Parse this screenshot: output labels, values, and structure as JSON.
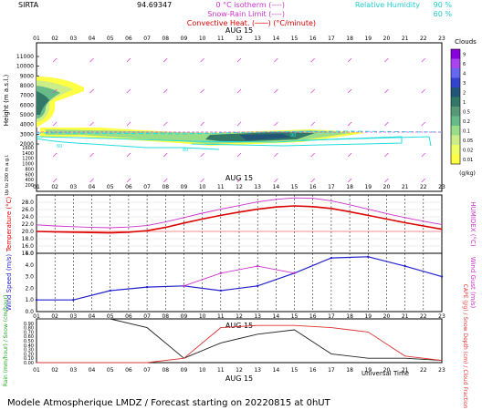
{
  "header": {
    "station": "SIRTA",
    "station_code": "94.69347",
    "legend_isotherm": "0 °C isotherm (----)",
    "legend_snowrain": "Snow-Rain Limit (----)",
    "legend_convective": "Convective Heat. (───) (°C/minute)",
    "legend_rh_label": "Relative Humidity",
    "legend_rh_90": "90 %",
    "legend_rh_60": "60 %"
  },
  "hours": [
    "01",
    "02",
    "03",
    "04",
    "05",
    "06",
    "07",
    "08",
    "09",
    "10",
    "11",
    "12",
    "13",
    "14",
    "15",
    "16",
    "17",
    "18",
    "19",
    "20",
    "21",
    "22",
    "23"
  ],
  "date_label": "AUG 15",
  "footer": {
    "universal_time": "Universal Time",
    "caption": "Modele Atmospherique LMDZ / Forecast starting on 20220815 at 0hUT"
  },
  "colors": {
    "temperature": "#dd0000",
    "humidex": "#cc33cc",
    "wind_speed": "#2222cc",
    "wind_gust": "#cc33cc",
    "rain": "#dd3333",
    "cloud_fraction": "#222222",
    "rh_contour": "#22dddd"
  },
  "chart_data": [
    {
      "type": "heatmap",
      "name": "clouds",
      "ylabel": "Height (m a.s.l.)",
      "ylabel_low": "Up to 200 m a.g.l.",
      "y_ticks_upper": [
        "11000",
        "10000",
        "9000",
        "8000",
        "7000",
        "6000",
        "5000",
        "4000",
        "3000",
        "2000"
      ],
      "y_ticks_lower": [
        "1600",
        "1400",
        "1200",
        "1000",
        "800",
        "600",
        "400",
        "200"
      ],
      "colorbar_title": "Clouds",
      "colorbar_ticks": [
        "9",
        "6",
        "4",
        "3",
        "2",
        "1",
        "0.5",
        "0.2",
        "0.1",
        "0.05",
        "0.02",
        "0.01"
      ],
      "colorbar_unit": "(g/kg)",
      "colorbar_colors": [
        "#8800dd",
        "#aa44ee",
        "#6666ee",
        "#3344cc",
        "#225577",
        "#337766",
        "#559977",
        "#66bb88",
        "#99dd88",
        "#ccee88",
        "#eeff66",
        "#ffff44"
      ],
      "contour_labels": [
        "60",
        "80",
        "90"
      ]
    },
    {
      "type": "line",
      "name": "temperature",
      "ylabel": "Temperature (°C)",
      "ylabel_right": "HUMIDEX (°C)",
      "y_ticks": [
        "28.0",
        "26.0",
        "24.0",
        "22.0",
        "20.0",
        "18.0",
        "16.0",
        "14.0"
      ],
      "ylim": [
        14,
        30
      ],
      "series": [
        {
          "name": "Temperature",
          "values": [
            20.0,
            19.9,
            19.8,
            19.7,
            19.6,
            19.8,
            20.2,
            21.1,
            22.3,
            23.4,
            24.4,
            25.3,
            26.1,
            26.7,
            27.0,
            26.8,
            26.3,
            25.4,
            24.4,
            23.4,
            22.4,
            21.5,
            20.6
          ]
        },
        {
          "name": "HUMIDEX",
          "values": [
            21.8,
            21.5,
            21.3,
            21.1,
            21.0,
            21.2,
            21.6,
            22.6,
            23.8,
            25.0,
            26.1,
            27.1,
            28.1,
            28.8,
            29.2,
            29.1,
            28.4,
            27.3,
            26.1,
            24.9,
            23.8,
            22.8,
            21.9
          ]
        }
      ]
    },
    {
      "type": "line",
      "name": "wind",
      "ylabel": "Wind Speed (m/s)",
      "ylabel_right": "Wind Gust (m/s)",
      "y_ticks": [
        "5.0",
        "4.0",
        "3.0",
        "2.0",
        "1.0",
        "0.0"
      ],
      "ylim": [
        0,
        5
      ],
      "series": [
        {
          "name": "Wind Speed",
          "x": [
            1,
            3,
            5,
            7,
            9,
            11,
            13,
            15,
            17,
            19,
            21,
            23
          ],
          "values": [
            1.0,
            1.0,
            1.8,
            2.1,
            2.2,
            1.8,
            2.2,
            3.3,
            4.6,
            4.7,
            3.9,
            3.0
          ]
        },
        {
          "name": "Wind Gust",
          "x": [
            9,
            11,
            13,
            15
          ],
          "values": [
            2.2,
            3.3,
            3.9,
            3.3
          ]
        }
      ]
    },
    {
      "type": "line",
      "name": "precip",
      "ylabel": "Rain (mm/hour) / Snow (cm/hour)",
      "ylabel_right": "CAPE (J/g) / Snow Depth (cm) / Cloud Fraction",
      "y_ticks": [
        "0.90",
        "0.80",
        "0.70",
        "0.60",
        "0.50",
        "0.40",
        "0.30",
        "0.20",
        "0.10",
        "0.00"
      ],
      "ylim": [
        0,
        1
      ],
      "series": [
        {
          "name": "Cloud Fraction",
          "x": [
            1,
            3,
            5,
            7,
            9,
            11,
            13,
            15,
            17,
            19,
            21,
            23
          ],
          "values": [
            1.0,
            1.0,
            1.0,
            0.8,
            0.1,
            0.45,
            0.65,
            0.75,
            0.2,
            0.1,
            0.1,
            0.05
          ]
        },
        {
          "name": "CAPE",
          "x": [
            1,
            3,
            5,
            7,
            9,
            11,
            13,
            15,
            17,
            19,
            21,
            23
          ],
          "values": [
            0,
            0,
            0,
            0,
            0.1,
            0.8,
            0.85,
            0.85,
            0.8,
            0.7,
            0.15,
            0.05
          ]
        }
      ]
    }
  ]
}
